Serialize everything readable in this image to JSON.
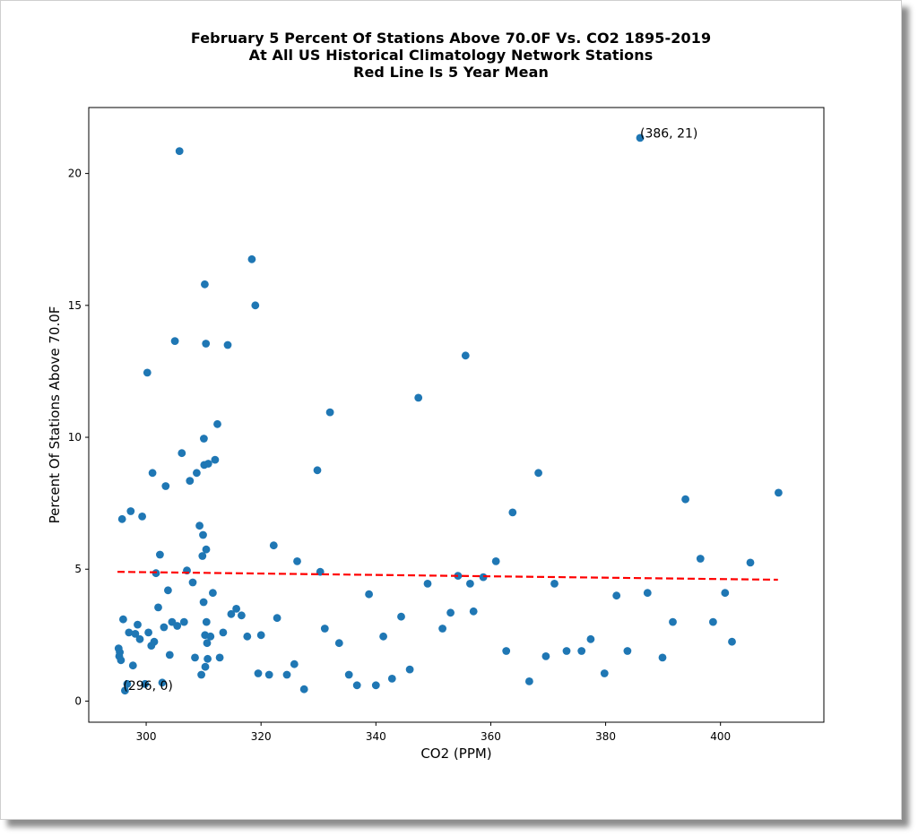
{
  "chart_data": {
    "type": "scatter",
    "title_lines": [
      "February 5 Percent Of Stations Above 70.0F Vs. CO2 1895-2019",
      "At All US Historical Climatology Network Stations",
      "Red Line Is 5 Year Mean"
    ],
    "xlabel": "CO2 (PPM)",
    "ylabel": "Percent Of Stations Above 70.0F",
    "xlim": [
      290,
      418
    ],
    "ylim": [
      -0.8,
      22.5
    ],
    "xticks": [
      300,
      320,
      340,
      360,
      380,
      400
    ],
    "yticks": [
      0,
      5,
      10,
      15,
      20
    ],
    "grid": false,
    "point_color": "#1f77b4",
    "trend_color": "#ff0000",
    "trend": {
      "x": [
        295,
        410
      ],
      "y": [
        4.9,
        4.6
      ],
      "style": "dashed"
    },
    "annotations": [
      {
        "text": "(386, 21)",
        "x": 386,
        "y": 21.3
      },
      {
        "text": "(296, 0)",
        "x": 296,
        "y": 0.35
      }
    ],
    "points": [
      [
        295.2,
        2.0
      ],
      [
        295.3,
        1.7
      ],
      [
        295.4,
        1.85
      ],
      [
        295.6,
        1.55
      ],
      [
        295.8,
        6.9
      ],
      [
        296.0,
        3.1
      ],
      [
        296.3,
        0.4
      ],
      [
        296.7,
        0.65
      ],
      [
        297.0,
        2.6
      ],
      [
        297.3,
        7.2
      ],
      [
        297.7,
        1.35
      ],
      [
        298.1,
        2.55
      ],
      [
        298.5,
        2.9
      ],
      [
        298.9,
        2.35
      ],
      [
        299.3,
        7.0
      ],
      [
        299.8,
        0.65
      ],
      [
        300.2,
        12.45
      ],
      [
        300.4,
        2.6
      ],
      [
        300.9,
        2.1
      ],
      [
        301.1,
        8.65
      ],
      [
        301.4,
        2.25
      ],
      [
        301.7,
        4.85
      ],
      [
        302.1,
        3.55
      ],
      [
        302.4,
        5.55
      ],
      [
        302.8,
        0.7
      ],
      [
        303.1,
        2.8
      ],
      [
        303.4,
        8.15
      ],
      [
        303.8,
        4.2
      ],
      [
        304.1,
        1.75
      ],
      [
        304.5,
        3.0
      ],
      [
        305.0,
        13.65
      ],
      [
        305.4,
        2.85
      ],
      [
        305.8,
        20.85
      ],
      [
        306.2,
        9.4
      ],
      [
        306.6,
        3.0
      ],
      [
        307.1,
        4.95
      ],
      [
        307.6,
        8.35
      ],
      [
        308.1,
        4.5
      ],
      [
        308.5,
        1.65
      ],
      [
        308.8,
        8.65
      ],
      [
        309.3,
        6.65
      ],
      [
        309.6,
        1.0
      ],
      [
        309.8,
        5.5
      ],
      [
        309.9,
        6.3
      ],
      [
        310.0,
        3.75
      ],
      [
        310.05,
        9.95
      ],
      [
        310.1,
        8.95
      ],
      [
        310.2,
        15.8
      ],
      [
        310.25,
        2.5
      ],
      [
        310.3,
        1.3
      ],
      [
        310.4,
        13.55
      ],
      [
        310.45,
        5.75
      ],
      [
        310.5,
        3.0
      ],
      [
        310.6,
        2.2
      ],
      [
        310.7,
        1.6
      ],
      [
        310.8,
        9.0
      ],
      [
        311.2,
        2.45
      ],
      [
        311.6,
        4.1
      ],
      [
        312.0,
        9.15
      ],
      [
        312.4,
        10.5
      ],
      [
        312.8,
        1.65
      ],
      [
        313.4,
        2.6
      ],
      [
        314.2,
        13.5
      ],
      [
        314.8,
        3.3
      ],
      [
        315.7,
        3.5
      ],
      [
        316.6,
        3.25
      ],
      [
        317.6,
        2.45
      ],
      [
        318.4,
        16.75
      ],
      [
        319.0,
        15.0
      ],
      [
        319.5,
        1.05
      ],
      [
        320.0,
        2.5
      ],
      [
        321.4,
        1.0
      ],
      [
        322.2,
        5.9
      ],
      [
        322.8,
        3.15
      ],
      [
        324.5,
        1.0
      ],
      [
        325.8,
        1.4
      ],
      [
        326.3,
        5.3
      ],
      [
        327.5,
        0.45
      ],
      [
        329.8,
        8.75
      ],
      [
        330.3,
        4.9
      ],
      [
        331.1,
        2.75
      ],
      [
        332.0,
        10.95
      ],
      [
        333.6,
        2.2
      ],
      [
        335.3,
        1.0
      ],
      [
        336.7,
        0.6
      ],
      [
        338.8,
        4.05
      ],
      [
        340.0,
        0.6
      ],
      [
        341.3,
        2.45
      ],
      [
        342.8,
        0.85
      ],
      [
        344.4,
        3.2
      ],
      [
        345.9,
        1.2
      ],
      [
        347.4,
        11.5
      ],
      [
        349.0,
        4.45
      ],
      [
        351.6,
        2.75
      ],
      [
        353.0,
        3.35
      ],
      [
        354.3,
        4.75
      ],
      [
        355.6,
        13.1
      ],
      [
        356.4,
        4.45
      ],
      [
        357.0,
        3.4
      ],
      [
        358.7,
        4.7
      ],
      [
        360.9,
        5.3
      ],
      [
        362.7,
        1.9
      ],
      [
        363.8,
        7.15
      ],
      [
        366.7,
        0.75
      ],
      [
        368.3,
        8.65
      ],
      [
        369.6,
        1.7
      ],
      [
        371.1,
        4.45
      ],
      [
        373.2,
        1.9
      ],
      [
        375.8,
        1.9
      ],
      [
        377.4,
        2.35
      ],
      [
        379.8,
        1.05
      ],
      [
        381.9,
        4.0
      ],
      [
        383.8,
        1.9
      ],
      [
        386.0,
        21.35
      ],
      [
        387.3,
        4.1
      ],
      [
        389.9,
        1.65
      ],
      [
        391.7,
        3.0
      ],
      [
        393.9,
        7.65
      ],
      [
        396.5,
        5.4
      ],
      [
        398.7,
        3.0
      ],
      [
        400.8,
        4.1
      ],
      [
        402.0,
        2.25
      ],
      [
        405.2,
        5.25
      ],
      [
        410.1,
        7.9
      ]
    ]
  }
}
